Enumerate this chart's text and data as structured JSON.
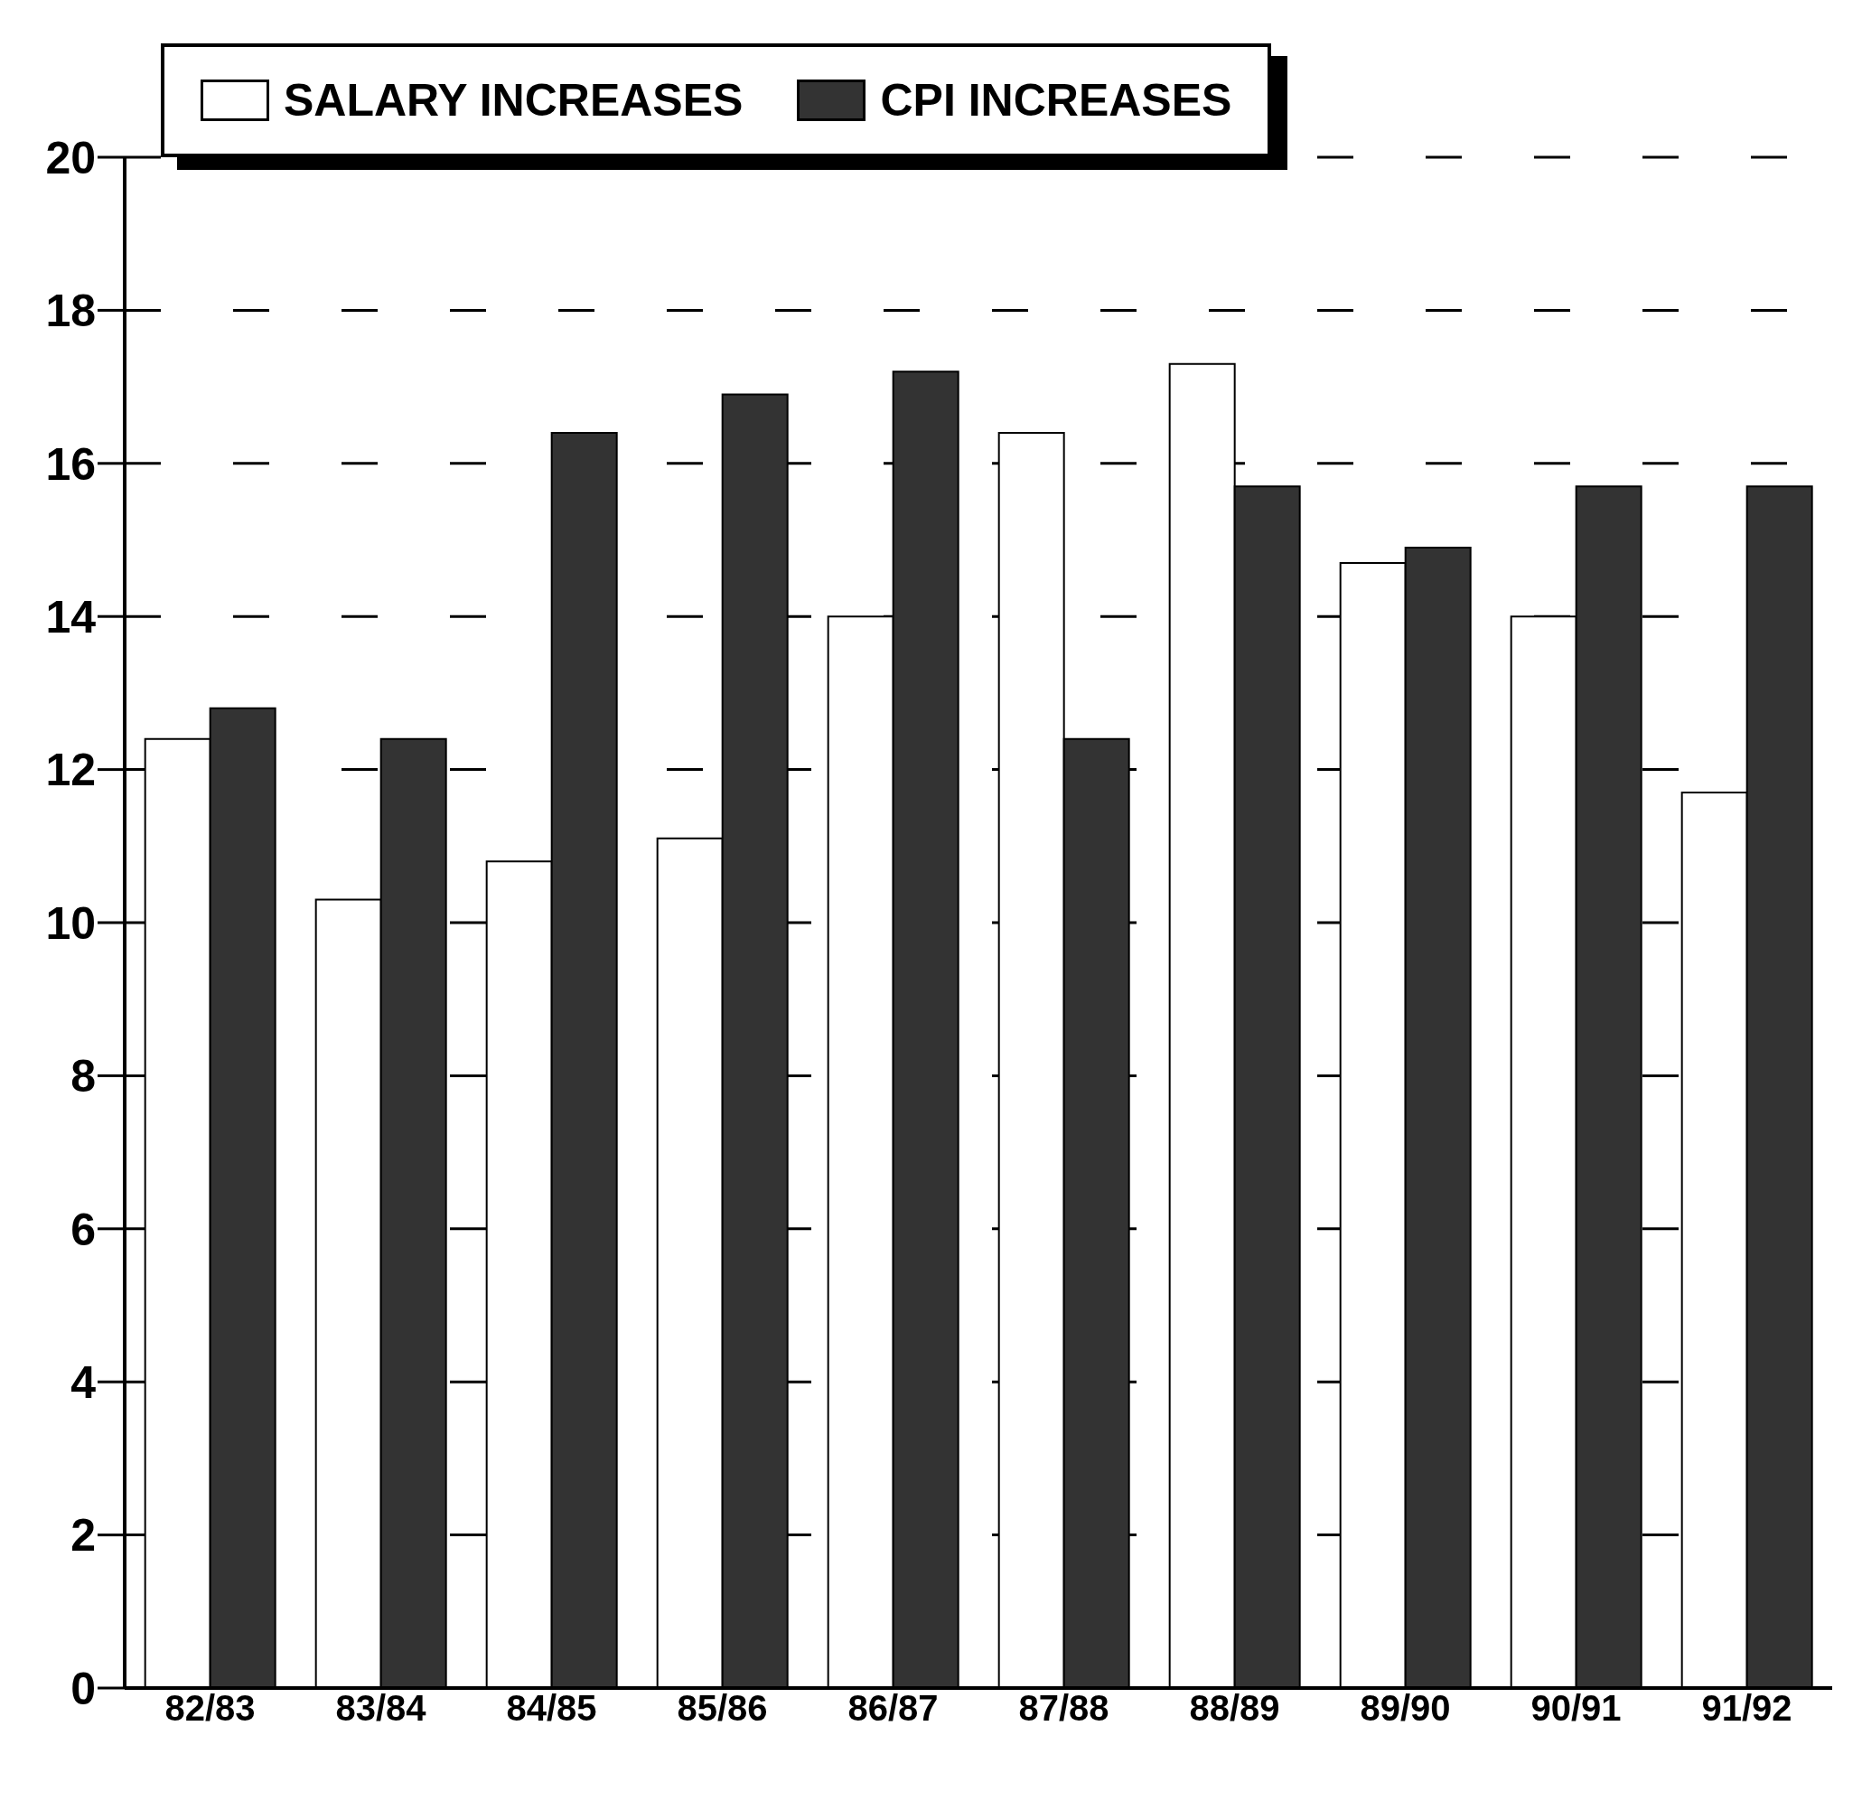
{
  "chart_data": {
    "type": "bar",
    "categories": [
      "82/83",
      "83/84",
      "84/85",
      "85/86",
      "86/87",
      "87/88",
      "88/89",
      "89/90",
      "90/91",
      "91/92"
    ],
    "series": [
      {
        "name": "SALARY INCREASES",
        "color": "#ffffff",
        "values": [
          12.4,
          10.3,
          10.8,
          11.1,
          14.0,
          16.4,
          17.3,
          14.7,
          14.0,
          11.7
        ]
      },
      {
        "name": "CPI INCREASES",
        "color": "#333333",
        "values": [
          12.8,
          12.4,
          16.4,
          16.9,
          17.2,
          12.4,
          15.7,
          14.9,
          15.7,
          15.7
        ]
      }
    ],
    "ylim": [
      0,
      20
    ],
    "yticks": [
      0,
      2,
      4,
      6,
      8,
      10,
      12,
      14,
      16,
      18,
      20
    ],
    "grid": "y",
    "legend": "top left"
  }
}
